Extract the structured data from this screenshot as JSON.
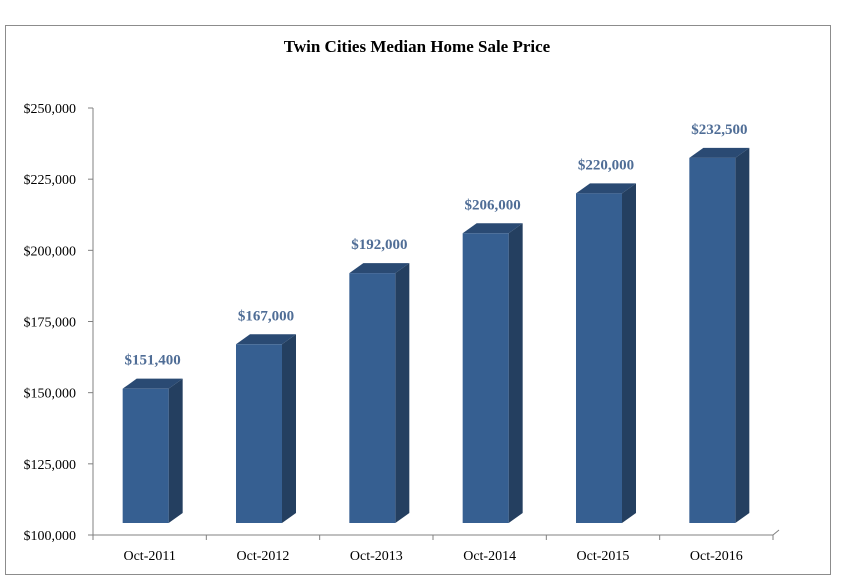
{
  "chart_data": {
    "type": "bar",
    "title": "Twin Cities Median Home Sale Price",
    "xlabel": "",
    "ylabel": "",
    "categories": [
      "Oct-2011",
      "Oct-2012",
      "Oct-2013",
      "Oct-2014",
      "Oct-2015",
      "Oct-2016"
    ],
    "values": [
      151400,
      167000,
      192000,
      206000,
      220000,
      232500
    ],
    "data_labels": [
      "$151,400",
      "$167,000",
      "$192,000",
      "$206,000",
      "$220,000",
      "$232,500"
    ],
    "ylim": [
      100000,
      250000
    ],
    "yticks": [
      100000,
      125000,
      150000,
      175000,
      200000,
      225000,
      250000
    ],
    "ytick_labels": [
      "$100,000",
      "$125,000",
      "$150,000",
      "$175,000",
      "$200,000",
      "$225,000",
      "$250,000"
    ],
    "grid": false,
    "legend": "none",
    "style": "3d-column",
    "colors": {
      "bar_front": "#365F91",
      "bar_side": "#243F60",
      "bar_top": "#2A4A73",
      "data_label": "#4F6D96",
      "axis": "#808080"
    }
  }
}
